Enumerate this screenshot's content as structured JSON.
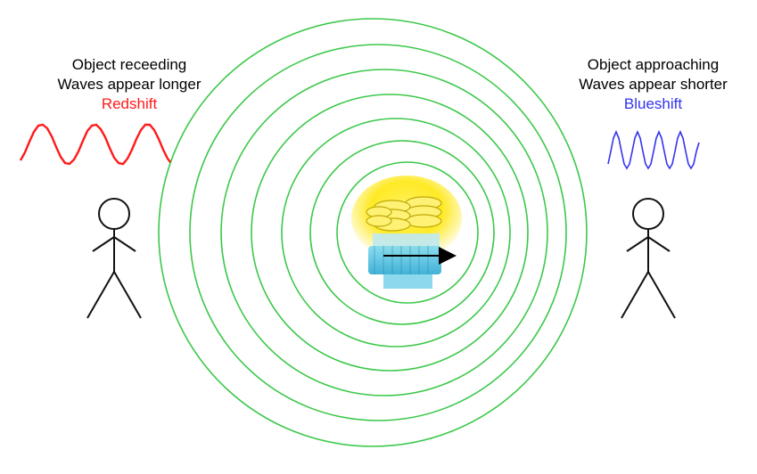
{
  "left_observer": {
    "line1": "Object receeding",
    "line2": "Waves appear longer",
    "shift_label": "Redshift"
  },
  "right_observer": {
    "line1": "Object approaching",
    "line2": "Waves appear shorter",
    "shift_label": "Blueshift"
  },
  "colors": {
    "redshift": "#ff1a1a",
    "blueshift": "#3333ee",
    "wavefront": "#3cc84a",
    "bulb_glow": "#ffe600",
    "bulb_base": "#3cb8dc"
  },
  "icons": {
    "source": "light-bulb-icon",
    "motion": "arrow-right-icon",
    "observer": "stick-figure-icon"
  }
}
